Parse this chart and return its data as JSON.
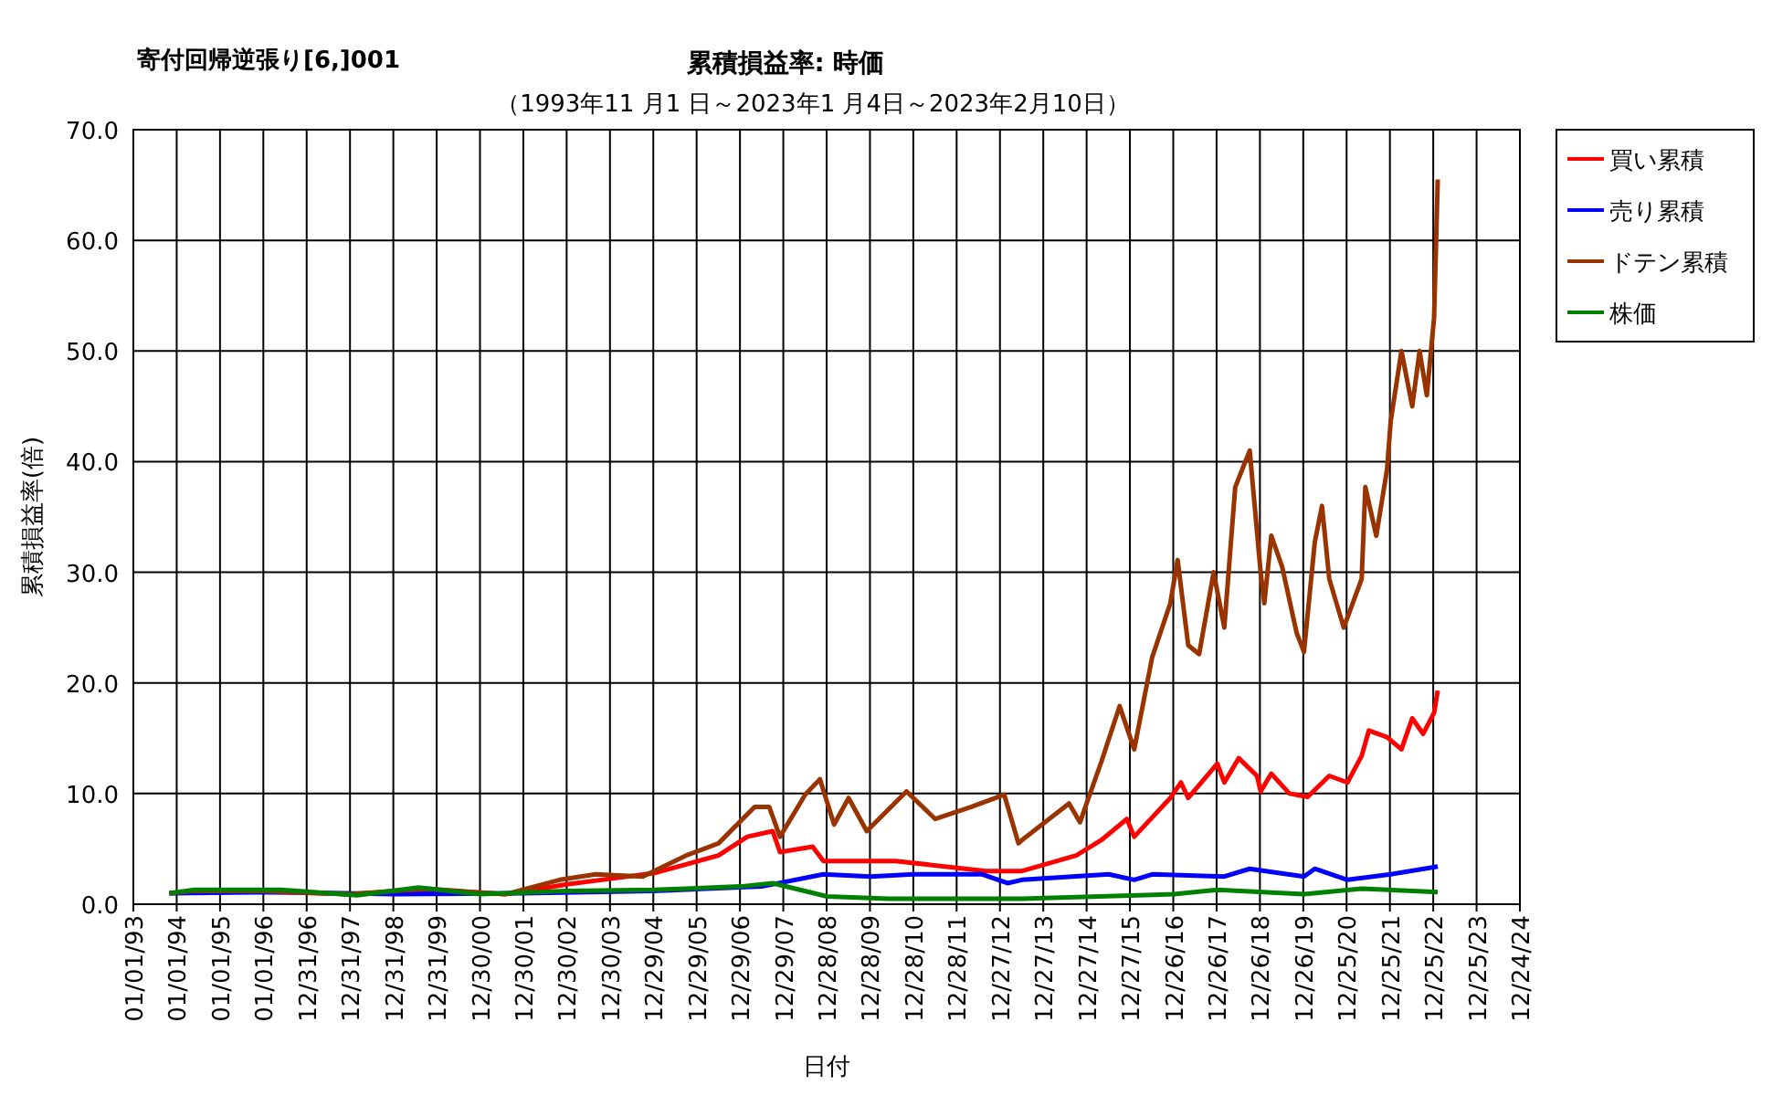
{
  "chart_data": {
    "type": "line",
    "title": "累積損益率:  時価",
    "subtitle": "（1993年11 月1 日～2023年1 月4日～2023年2月10日）",
    "annotations": [
      "寄付回帰逆張り[6,]001"
    ],
    "xlabel": "日付",
    "ylabel": "累積損益率(倍)",
    "xlim": [
      "1993-01-01",
      "2024-12-24"
    ],
    "xticks": [
      {
        "value": "1993-01-01",
        "label": "01/01/93"
      },
      {
        "value": "1994-01-01",
        "label": "01/01/94"
      },
      {
        "value": "1995-01-01",
        "label": "01/01/95"
      },
      {
        "value": "1996-01-01",
        "label": "01/01/96"
      },
      {
        "value": "1996-12-31",
        "label": "12/31/96"
      },
      {
        "value": "1997-12-31",
        "label": "12/31/97"
      },
      {
        "value": "1998-12-31",
        "label": "12/31/98"
      },
      {
        "value": "1999-12-31",
        "label": "12/31/99"
      },
      {
        "value": "2000-12-30",
        "label": "12/30/00"
      },
      {
        "value": "2001-12-30",
        "label": "12/30/01"
      },
      {
        "value": "2002-12-30",
        "label": "12/30/02"
      },
      {
        "value": "2003-12-30",
        "label": "12/30/03"
      },
      {
        "value": "2004-12-29",
        "label": "12/29/04"
      },
      {
        "value": "2005-12-29",
        "label": "12/29/05"
      },
      {
        "value": "2006-12-29",
        "label": "12/29/06"
      },
      {
        "value": "2007-12-29",
        "label": "12/29/07"
      },
      {
        "value": "2008-12-28",
        "label": "12/28/08"
      },
      {
        "value": "2009-12-28",
        "label": "12/28/09"
      },
      {
        "value": "2010-12-28",
        "label": "12/28/10"
      },
      {
        "value": "2011-12-28",
        "label": "12/28/11"
      },
      {
        "value": "2012-12-27",
        "label": "12/27/12"
      },
      {
        "value": "2013-12-27",
        "label": "12/27/13"
      },
      {
        "value": "2014-12-27",
        "label": "12/27/14"
      },
      {
        "value": "2015-12-27",
        "label": "12/27/15"
      },
      {
        "value": "2016-12-26",
        "label": "12/26/16"
      },
      {
        "value": "2017-12-26",
        "label": "12/26/17"
      },
      {
        "value": "2018-12-26",
        "label": "12/26/18"
      },
      {
        "value": "2019-12-26",
        "label": "12/26/19"
      },
      {
        "value": "2020-12-25",
        "label": "12/25/20"
      },
      {
        "value": "2021-12-25",
        "label": "12/25/21"
      },
      {
        "value": "2022-12-25",
        "label": "12/25/22"
      },
      {
        "value": "2023-12-25",
        "label": "12/25/23"
      },
      {
        "value": "2024-12-24",
        "label": "12/24/24"
      }
    ],
    "ylim": [
      0,
      70
    ],
    "yticks": [
      {
        "value": 0,
        "label": "0.0"
      },
      {
        "value": 10,
        "label": "10.0"
      },
      {
        "value": 20,
        "label": "20.0"
      },
      {
        "value": 30,
        "label": "30.0"
      },
      {
        "value": 40,
        "label": "40.0"
      },
      {
        "value": 50,
        "label": "50.0"
      },
      {
        "value": 60,
        "label": "60.0"
      },
      {
        "value": 70,
        "label": "70.0"
      }
    ],
    "grid": true,
    "legend": "right",
    "marker": "none",
    "line_style": "solid",
    "series": [
      {
        "name": "買い累積",
        "color": "#ff0000",
        "x": [
          "1993-11",
          "1995-06",
          "1998-01",
          "1999-10",
          "2001-08",
          "2003-01",
          "2004-01",
          "2005-01",
          "2006-07",
          "2007-03",
          "2007-10",
          "2007-12",
          "2008-09",
          "2008-12",
          "2010-08",
          "2012-09",
          "2013-03",
          "2013-07",
          "2014-10",
          "2015-05",
          "2015-12",
          "2016-02",
          "2016-12",
          "2017-03",
          "2017-05",
          "2018-01",
          "2018-03",
          "2018-07",
          "2018-12",
          "2019-01",
          "2019-04",
          "2019-09",
          "2020-02",
          "2020-08",
          "2021-01",
          "2021-05",
          "2021-07",
          "2021-12",
          "2022-04",
          "2022-07",
          "2022-10",
          "2023-01",
          "2023-02"
        ],
        "values": [
          1.0,
          1.2,
          0.9,
          1.3,
          0.9,
          1.8,
          2.3,
          2.8,
          4.4,
          6.1,
          6.6,
          4.7,
          5.2,
          3.9,
          3.9,
          3.0,
          3.0,
          3.0,
          4.4,
          5.8,
          7.7,
          6.1,
          9.6,
          11.0,
          9.6,
          12.7,
          11.0,
          13.2,
          11.6,
          10.2,
          11.8,
          10.0,
          9.7,
          11.6,
          11.0,
          13.4,
          15.7,
          15.1,
          14.0,
          16.8,
          15.4,
          17.3,
          19.3
        ]
      },
      {
        "name": "売り累積",
        "color": "#0000ff",
        "x": [
          "1993-11",
          "1996-06",
          "1999-01",
          "2002-01",
          "2005-01",
          "2007-07",
          "2008-12",
          "2010-01",
          "2011-01",
          "2012-08",
          "2013-03",
          "2013-07",
          "2015-07",
          "2016-02",
          "2016-07",
          "2018-03",
          "2018-10",
          "2020-01",
          "2020-04",
          "2021-01",
          "2022-01",
          "2023-02"
        ],
        "values": [
          1.0,
          1.1,
          0.9,
          1.0,
          1.2,
          1.6,
          2.7,
          2.5,
          2.7,
          2.7,
          1.9,
          2.2,
          2.7,
          2.2,
          2.7,
          2.5,
          3.2,
          2.5,
          3.2,
          2.2,
          2.7,
          3.4
        ]
      },
      {
        "name": "ドテン累積",
        "color": "#993300",
        "x": [
          "1993-11",
          "1994-06",
          "1995-12",
          "1998-01",
          "1999-10",
          "2001-08",
          "2002-11",
          "2003-09",
          "2004-10",
          "2005-10",
          "2006-07",
          "2007-05",
          "2007-09",
          "2007-12",
          "2008-07",
          "2008-11",
          "2009-03",
          "2009-07",
          "2009-12",
          "2010-11",
          "2011-07",
          "2012-05",
          "2013-02",
          "2013-06",
          "2013-07",
          "2014-08",
          "2014-11",
          "2015-05",
          "2015-10",
          "2016-02",
          "2016-07",
          "2016-12",
          "2017-02",
          "2017-05",
          "2017-08",
          "2017-12",
          "2018-03",
          "2018-06",
          "2018-10",
          "2019-01",
          "2019-02",
          "2019-04",
          "2019-07",
          "2019-11",
          "2020-01",
          "2020-04",
          "2020-06",
          "2020-08",
          "2020-12",
          "2021-05",
          "2021-06",
          "2021-09",
          "2021-12",
          "2022-01",
          "2022-04",
          "2022-07",
          "2022-09",
          "2022-11",
          "2023-01",
          "2023-02"
        ],
        "values": [
          1.0,
          1.2,
          1.2,
          0.9,
          1.4,
          0.9,
          2.2,
          2.7,
          2.5,
          4.4,
          5.5,
          8.8,
          8.8,
          6.1,
          9.9,
          11.3,
          7.2,
          9.6,
          6.6,
          10.2,
          7.7,
          8.8,
          9.9,
          5.5,
          5.8,
          9.1,
          7.4,
          12.9,
          17.9,
          14.0,
          22.3,
          27.2,
          31.1,
          23.4,
          22.6,
          30.0,
          25.0,
          37.7,
          41.0,
          30.0,
          27.2,
          33.3,
          30.5,
          24.5,
          22.8,
          32.7,
          36.0,
          29.4,
          25.0,
          29.4,
          37.7,
          33.3,
          39.3,
          43.7,
          50.0,
          45.0,
          50.0,
          46.0,
          53.0,
          65.5
        ]
      },
      {
        "name": "株価",
        "color": "#008000",
        "x": [
          "1993-11",
          "1994-06",
          "1996-06",
          "1998-03",
          "1999-08",
          "2001-01",
          "2003-01",
          "2005-01",
          "2007-01",
          "2007-10",
          "2009-01",
          "2010-06",
          "2013-07",
          "2017-01",
          "2018-01",
          "2020-01",
          "2021-05",
          "2023-02"
        ],
        "values": [
          1.0,
          1.3,
          1.3,
          0.8,
          1.5,
          0.9,
          1.2,
          1.3,
          1.6,
          1.9,
          0.7,
          0.5,
          0.5,
          0.9,
          1.3,
          0.9,
          1.4,
          1.1
        ]
      }
    ]
  }
}
